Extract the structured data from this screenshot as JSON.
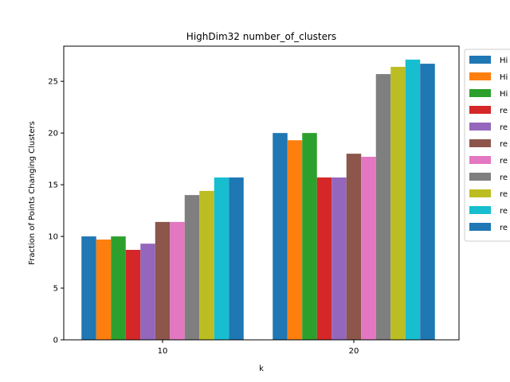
{
  "chart_data": {
    "type": "bar",
    "title": "HighDim32 number_of_clusters",
    "xlabel": "k",
    "ylabel": "Fraction of Points Changing Clusters",
    "categories": [
      "10",
      "20"
    ],
    "ylim": [
      0,
      28.4
    ],
    "yticks": [
      0,
      5,
      10,
      15,
      20,
      25
    ],
    "grid": false,
    "legend_placement": "outside-right-top",
    "series": [
      {
        "name": "Hi",
        "color": "#1f77b4",
        "values": [
          10.0,
          20.0
        ]
      },
      {
        "name": "Hi",
        "color": "#ff7f0e",
        "values": [
          9.7,
          19.3
        ]
      },
      {
        "name": "Hi",
        "color": "#2ca02c",
        "values": [
          10.0,
          20.0
        ]
      },
      {
        "name": "re",
        "color": "#d62728",
        "values": [
          8.7,
          15.7
        ]
      },
      {
        "name": "re",
        "color": "#9467bd",
        "values": [
          9.3,
          15.7
        ]
      },
      {
        "name": "re",
        "color": "#8c564b",
        "values": [
          11.4,
          18.0
        ]
      },
      {
        "name": "re",
        "color": "#e377c2",
        "values": [
          11.4,
          17.7
        ]
      },
      {
        "name": "re",
        "color": "#7f7f7f",
        "values": [
          14.0,
          25.7
        ]
      },
      {
        "name": "re",
        "color": "#bcbd22",
        "values": [
          14.4,
          26.4
        ]
      },
      {
        "name": "re",
        "color": "#17becf",
        "values": [
          15.7,
          27.1
        ]
      },
      {
        "name": "re",
        "color": "#1f77b4",
        "values": [
          15.7,
          26.7
        ]
      }
    ]
  }
}
